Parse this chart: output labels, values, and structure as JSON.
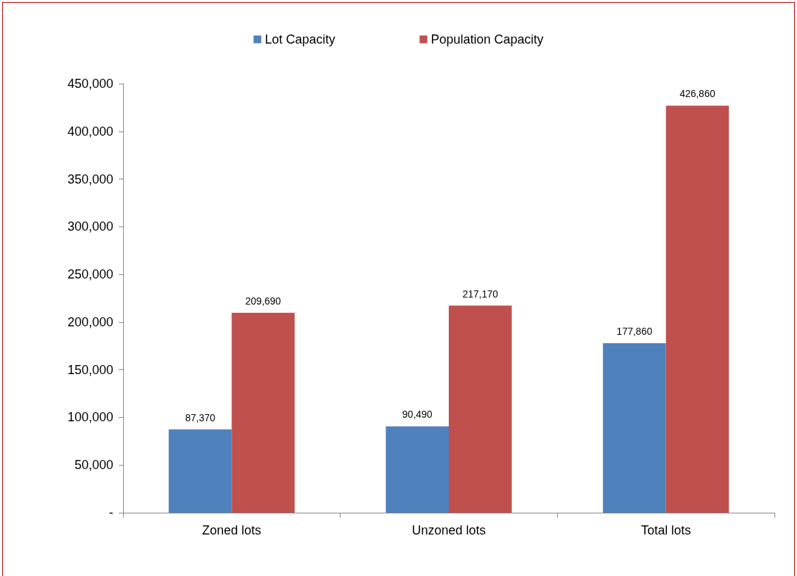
{
  "chart_data": {
    "type": "bar",
    "categories": [
      "Zoned lots",
      "Unzoned lots",
      "Total lots"
    ],
    "series": [
      {
        "name": "Lot Capacity",
        "color": "#4f81bd",
        "values": [
          87370,
          90490,
          177860
        ],
        "value_labels": [
          "87,370",
          "90,490",
          "177,860"
        ]
      },
      {
        "name": "Population Capacity",
        "color": "#c0504d",
        "values": [
          209690,
          217170,
          426860
        ],
        "value_labels": [
          "209,690",
          "217,170",
          "426,860"
        ]
      }
    ],
    "ylim": [
      0,
      450000
    ],
    "yticks": [
      {
        "value": 0,
        "label": "-"
      },
      {
        "value": 50000,
        "label": "50,000"
      },
      {
        "value": 100000,
        "label": "100,000"
      },
      {
        "value": 150000,
        "label": "150,000"
      },
      {
        "value": 200000,
        "label": "200,000"
      },
      {
        "value": 250000,
        "label": "250,000"
      },
      {
        "value": 300000,
        "label": "300,000"
      },
      {
        "value": 350000,
        "label": "350,000"
      },
      {
        "value": 400000,
        "label": "400,000"
      },
      {
        "value": 450000,
        "label": "450,000"
      }
    ],
    "grid": false,
    "legend": "top"
  }
}
